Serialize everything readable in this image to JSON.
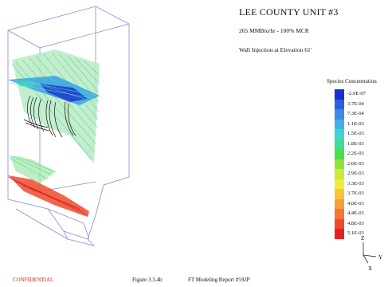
{
  "header": {
    "title": "LEE COUNTY UNIT #3",
    "subtitle_load": "265 MMBtu/hr - 100% MCR",
    "subtitle_case": "Wall Injection at Elevation 61'"
  },
  "legend": {
    "title": "Species Concentration",
    "entries": [
      {
        "label": "-2.9E-07",
        "color": "#1a2fd0"
      },
      {
        "label": "3.7E-04",
        "color": "#2f5ee0"
      },
      {
        "label": "7.3E-04",
        "color": "#3b8ae6"
      },
      {
        "label": "1.1E-03",
        "color": "#3eb3ea"
      },
      {
        "label": "1.5E-03",
        "color": "#3fd3d6"
      },
      {
        "label": "1.8E-03",
        "color": "#3fdc98"
      },
      {
        "label": "2.2E-03",
        "color": "#48e04a"
      },
      {
        "label": "2.6E-03",
        "color": "#8ee43c"
      },
      {
        "label": "2.9E-03",
        "color": "#cde93a"
      },
      {
        "label": "3.3E-03",
        "color": "#f2ea3a"
      },
      {
        "label": "3.7E-03",
        "color": "#f6c63a"
      },
      {
        "label": "4.0E-03",
        "color": "#f69f38"
      },
      {
        "label": "4.4E-03",
        "color": "#f47534"
      },
      {
        "label": "4.8E-03",
        "color": "#f04a2e"
      },
      {
        "label": "5.1E-03",
        "color": "#e8231f"
      }
    ]
  },
  "axes": {
    "z": "Z",
    "y": "Y",
    "x": "X"
  },
  "footer": {
    "confidential": "CONFIDENTIAL",
    "figure_number": "Figure 3.3.4b",
    "report": "FT Modeling Report #592P"
  }
}
